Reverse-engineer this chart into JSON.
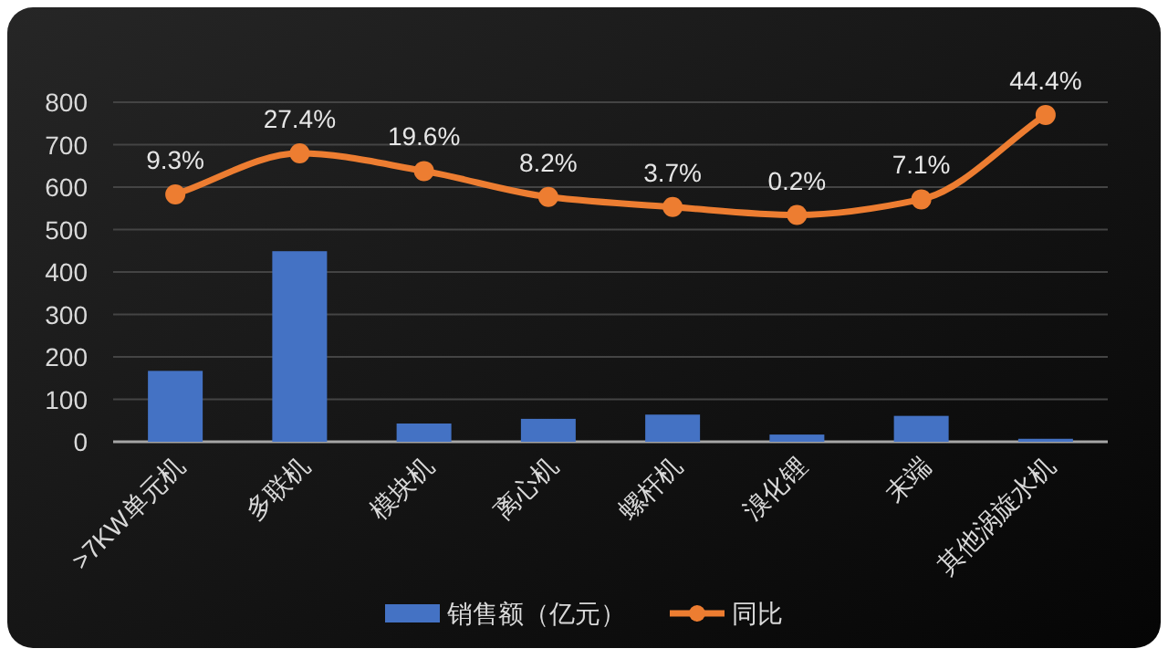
{
  "chart_data": {
    "type": "bar",
    "categories": [
      ">7KW单元机",
      "多联机",
      "模块机",
      "离心机",
      "螺杆机",
      "溴化锂",
      "末端",
      "其他涡旋水机"
    ],
    "ylim": [
      0,
      800
    ],
    "yticks": [
      0,
      100,
      200,
      300,
      400,
      500,
      600,
      700,
      800
    ],
    "y2lim": [
      -100,
      50
    ],
    "grid": "y",
    "legend": "bottom",
    "series": [
      {
        "name": "销售额（亿元）",
        "color": "#4472c4",
        "values": [
          167,
          449,
          43,
          54,
          64,
          17,
          61,
          7
        ]
      },
      {
        "name": "同比",
        "type": "line",
        "axis": "y2",
        "color": "#ed7d31",
        "marker": "circle",
        "values": [
          9.3,
          27.4,
          19.6,
          8.2,
          3.7,
          0.2,
          7.1,
          44.4
        ],
        "value_labels": [
          "9.3%",
          "27.4%",
          "19.6%",
          "8.2%",
          "3.7%",
          "0.2%",
          "7.1%",
          "44.4%"
        ]
      }
    ]
  }
}
